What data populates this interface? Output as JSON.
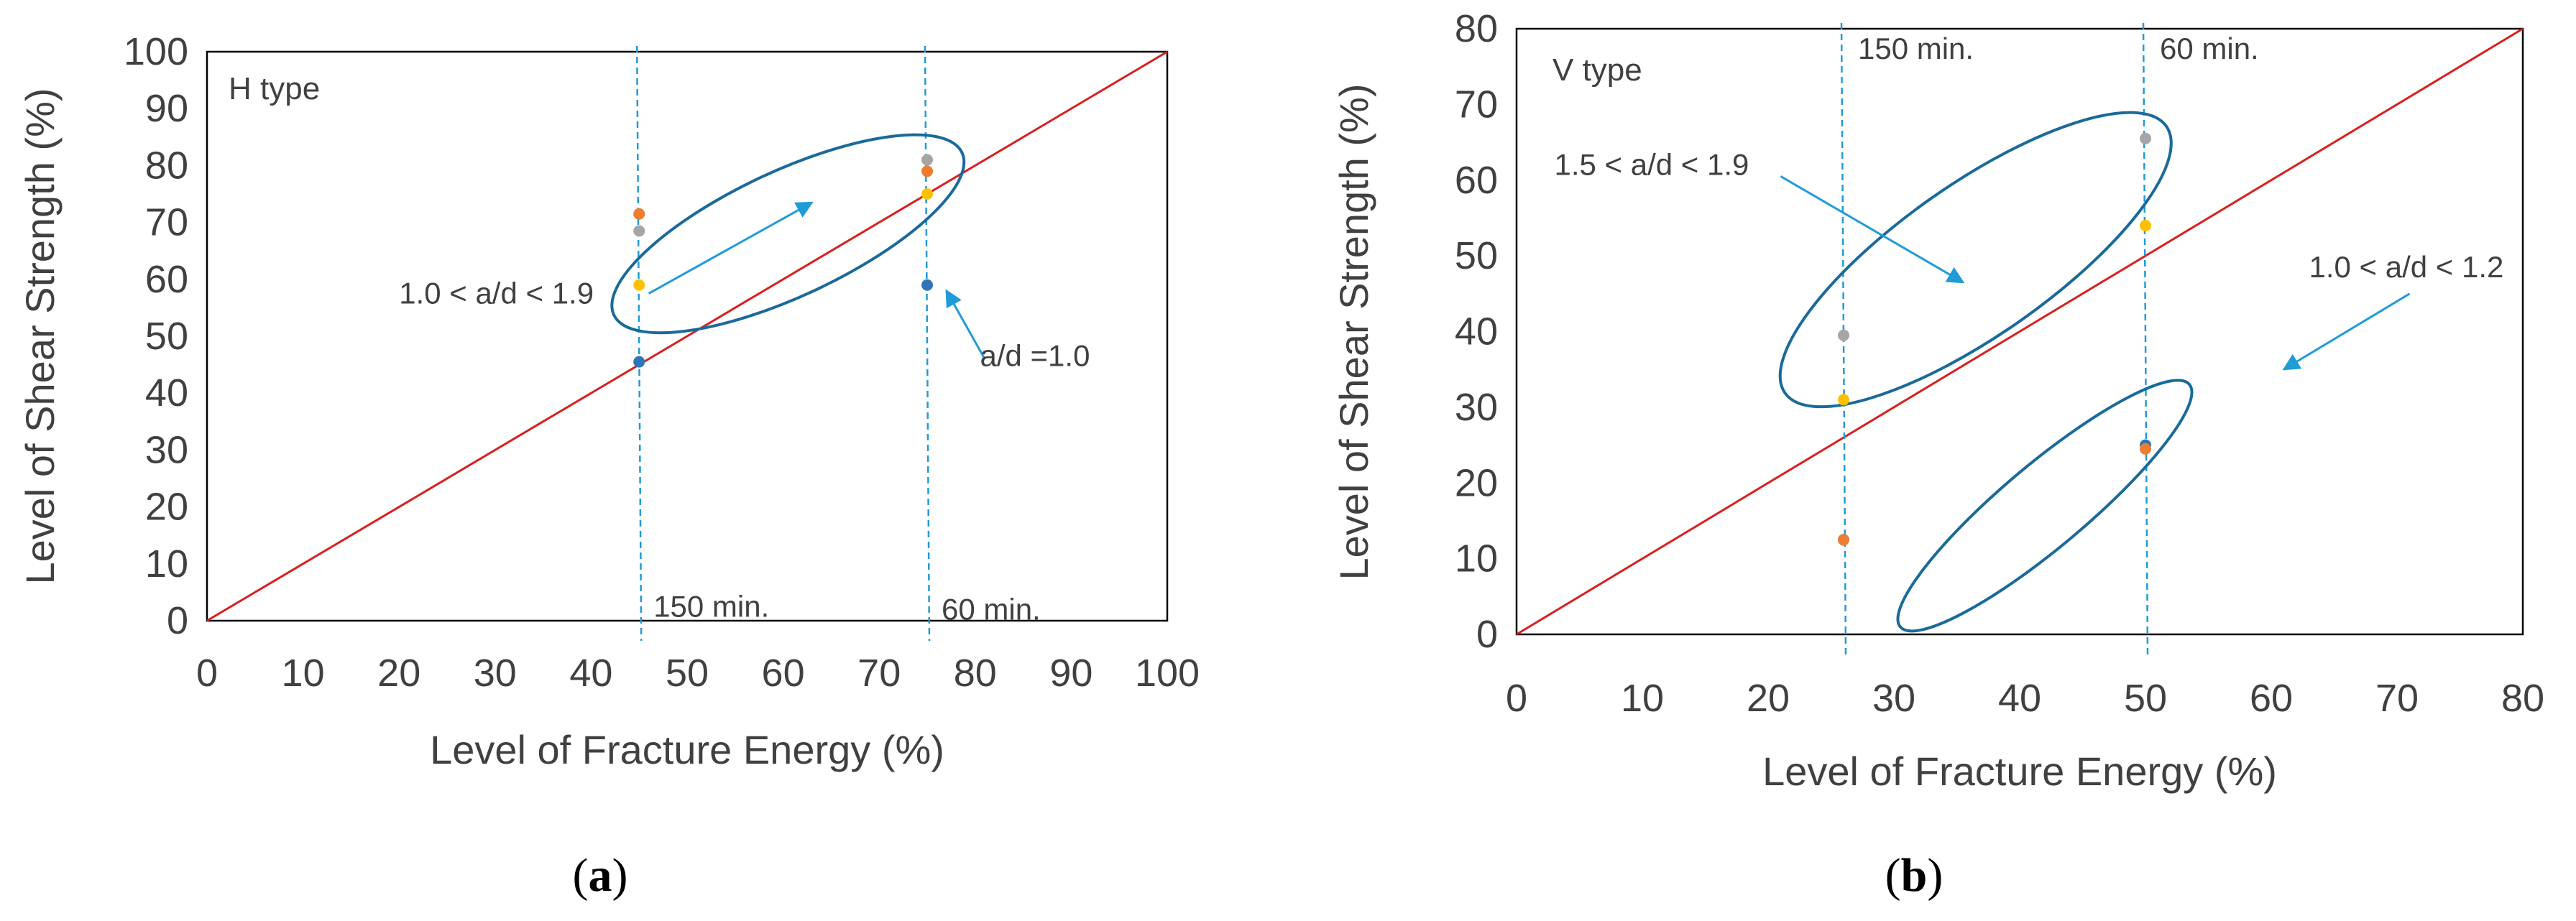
{
  "chart_data": [
    {
      "type": "scatter",
      "panel_label": "a",
      "type_label": "H type",
      "xlabel": "Level of Fracture Energy (%)",
      "ylabel": "Level of Shear Strength (%)",
      "xlim": [
        0,
        100
      ],
      "ylim": [
        0,
        100
      ],
      "x_ticks": [
        "0",
        "10",
        "20",
        "30",
        "40",
        "50",
        "60",
        "70",
        "80",
        "90",
        "100"
      ],
      "y_ticks": [
        "0",
        "10",
        "20",
        "30",
        "40",
        "50",
        "60",
        "70",
        "80",
        "90",
        "100"
      ],
      "reference_line": {
        "name": "y = x",
        "points": [
          [
            0,
            0
          ],
          [
            100,
            100
          ]
        ],
        "color": "#d62020"
      },
      "vlines": [
        {
          "x": 45,
          "label": "150 min.",
          "label_y": 6
        },
        {
          "x": 75,
          "label": "60 min.",
          "label_y": 5.5
        }
      ],
      "series": [
        {
          "name": "blue",
          "color": "#2e75b6",
          "points": [
            [
              45,
              45.5
            ],
            [
              75,
              59
            ]
          ]
        },
        {
          "name": "orange",
          "color": "#ed7d31",
          "points": [
            [
              45,
              71.5
            ],
            [
              75,
              79
            ]
          ]
        },
        {
          "name": "gray",
          "color": "#a5a5a5",
          "points": [
            [
              45,
              68.5
            ],
            [
              75,
              81
            ]
          ]
        },
        {
          "name": "yellow",
          "color": "#ffc000",
          "points": [
            [
              45,
              59
            ],
            [
              75,
              75
            ]
          ]
        }
      ],
      "ellipses": [
        {
          "cx": 60.5,
          "cy": 68,
          "rx": 20,
          "ry": 11,
          "angle": 25
        }
      ],
      "annotations": [
        {
          "text": "1.0 < a/d < 1.9",
          "x": 20,
          "y": 57.5,
          "arrow_from": [
            46,
            57.5
          ],
          "arrow_to": [
            63,
            73.5
          ]
        },
        {
          "text": "a/d =1.0",
          "x": 80.5,
          "y": 46.5,
          "arrow_from": [
            81,
            46
          ],
          "arrow_to": [
            77,
            58
          ]
        }
      ]
    },
    {
      "type": "scatter",
      "panel_label": "b",
      "type_label": "V type",
      "xlabel": "Level of Fracture Energy (%)",
      "ylabel": "Level of Shear Strength (%)",
      "xlim": [
        0,
        80
      ],
      "ylim": [
        0,
        80
      ],
      "x_ticks": [
        "0",
        "10",
        "20",
        "30",
        "40",
        "50",
        "60",
        "70",
        "80"
      ],
      "y_ticks": [
        "0",
        "10",
        "20",
        "30",
        "40",
        "50",
        "60",
        "70",
        "80"
      ],
      "reference_line": {
        "name": "y = x",
        "points": [
          [
            0,
            0
          ],
          [
            80,
            80
          ]
        ],
        "color": "#d62020"
      },
      "vlines": [
        {
          "x": 26,
          "label": "150 min.",
          "label_y": 80
        },
        {
          "x": 50,
          "label": "60 min.",
          "label_y": 80
        }
      ],
      "series": [
        {
          "name": "blue",
          "color": "#2e75b6",
          "points": [
            [
              26,
              12.5
            ],
            [
              50,
              25
            ]
          ]
        },
        {
          "name": "orange",
          "color": "#ed7d31",
          "points": [
            [
              26,
              12.5
            ],
            [
              50,
              24.5
            ]
          ]
        },
        {
          "name": "gray",
          "color": "#a5a5a5",
          "points": [
            [
              26,
              39.5
            ],
            [
              50,
              65.5
            ]
          ]
        },
        {
          "name": "yellow",
          "color": "#ffc000",
          "points": [
            [
              26,
              31
            ],
            [
              50,
              54
            ]
          ]
        }
      ],
      "ellipses": [
        {
          "cx": 36.5,
          "cy": 49.5,
          "rx": 18.5,
          "ry": 10,
          "angle": 35
        },
        {
          "cx": 42,
          "cy": 17,
          "rx": 15,
          "ry": 5.5,
          "angle": 40
        }
      ],
      "annotations": [
        {
          "text": "1.5 < a/d < 1.9",
          "x": 3,
          "y": 62,
          "arrow_from": [
            21,
            60.5
          ],
          "arrow_to": [
            35.5,
            46.5
          ]
        },
        {
          "text": "1.0 < a/d < 1.2",
          "x": 63,
          "y": 48.5,
          "arrow_from": [
            71,
            45
          ],
          "arrow_to": [
            61,
            35
          ]
        }
      ]
    }
  ]
}
